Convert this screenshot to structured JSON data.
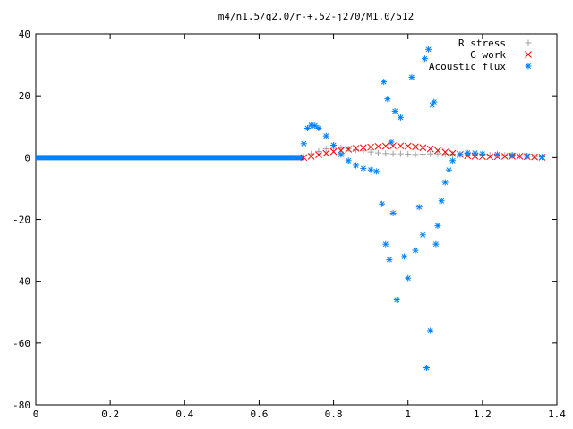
{
  "chart_data": {
    "type": "scatter",
    "title": "m4/n1.5/q2.0/r-+.52-j270/M1.0/512",
    "xlabel": "",
    "ylabel": "",
    "xlim": [
      0,
      1.4
    ],
    "ylim": [
      -80,
      40
    ],
    "grid": false,
    "legend_placement": "top-right",
    "x_ticks": [
      "0",
      "0.2",
      "0.4",
      "0.6",
      "0.8",
      "1",
      "1.2",
      "1.4"
    ],
    "y_ticks": [
      "40",
      "20",
      "0",
      "-20",
      "-40",
      "-60",
      "-80"
    ],
    "series": [
      {
        "name": "R stress",
        "marker": "plus",
        "color": "#a0a0a0",
        "x": [
          0.72,
          0.74,
          0.76,
          0.78,
          0.8,
          0.82,
          0.84,
          0.86,
          0.88,
          0.9,
          0.92,
          0.94,
          0.96,
          0.98,
          1.0,
          1.02,
          1.04,
          1.06,
          1.08,
          1.1,
          1.12,
          1.14,
          1.16,
          1.18,
          1.2,
          1.22,
          1.24,
          1.26,
          1.28,
          1.3,
          1.32,
          1.34,
          1.36
        ],
        "y": [
          0.5,
          1.2,
          2.0,
          2.8,
          3.0,
          3.1,
          2.9,
          2.6,
          2.2,
          1.8,
          1.5,
          1.3,
          1.2,
          1.2,
          1.1,
          1.0,
          1.1,
          1.2,
          1.2,
          1.1,
          1.1,
          1.0,
          1.0,
          0.9,
          0.9,
          0.8,
          0.8,
          0.7,
          0.6,
          0.5,
          0.4,
          0.3,
          0.2
        ]
      },
      {
        "name": "G work",
        "marker": "cross",
        "color": "#ff0000",
        "x": [
          0.72,
          0.74,
          0.76,
          0.78,
          0.8,
          0.82,
          0.84,
          0.86,
          0.88,
          0.9,
          0.92,
          0.94,
          0.96,
          0.98,
          1.0,
          1.02,
          1.04,
          1.06,
          1.08,
          1.1,
          1.12,
          1.14,
          1.16,
          1.18,
          1.2,
          1.22,
          1.24,
          1.26,
          1.28,
          1.3,
          1.32,
          1.34,
          1.36
        ],
        "y": [
          0.0,
          0.4,
          0.9,
          1.4,
          1.9,
          2.3,
          2.7,
          3.0,
          3.2,
          3.4,
          3.6,
          3.7,
          3.8,
          3.8,
          3.7,
          3.5,
          3.2,
          2.8,
          2.3,
          1.8,
          1.4,
          1.0,
          0.6,
          0.4,
          0.3,
          0.3,
          0.3,
          0.4,
          0.4,
          0.4,
          0.3,
          0.2,
          0.1
        ]
      },
      {
        "name": "Acoustic flux",
        "marker": "star",
        "color": "#0080ff",
        "x": [
          0.72,
          0.73,
          0.74,
          0.75,
          0.76,
          0.78,
          0.8,
          0.82,
          0.84,
          0.86,
          0.88,
          0.9,
          0.915,
          0.93,
          0.935,
          0.94,
          0.945,
          0.95,
          0.955,
          0.96,
          0.965,
          0.97,
          0.98,
          0.99,
          1.0,
          1.01,
          1.02,
          1.03,
          1.04,
          1.045,
          1.05,
          1.055,
          1.06,
          1.065,
          1.07,
          1.075,
          1.08,
          1.09,
          1.1,
          1.11,
          1.12,
          1.14,
          1.16,
          1.18,
          1.2,
          1.24,
          1.28,
          1.32,
          1.36
        ],
        "y": [
          4.5,
          9.5,
          10.5,
          10.3,
          9.5,
          7.0,
          4.0,
          1.0,
          -1.0,
          -2.5,
          -3.5,
          -4.0,
          -4.5,
          -15.0,
          24.5,
          -28.0,
          19.0,
          -33.0,
          5.0,
          -18.0,
          15.0,
          -46.0,
          13.0,
          -32.0,
          -39.0,
          26.0,
          -30.0,
          -16.0,
          -25.0,
          32.0,
          -68.0,
          35.0,
          -56.0,
          17.0,
          18.0,
          -28.0,
          -22.0,
          -14.0,
          -8.0,
          -4.0,
          -1.0,
          1.0,
          1.5,
          1.5,
          1.2,
          1.0,
          0.8,
          0.5,
          0.2
        ]
      }
    ]
  }
}
